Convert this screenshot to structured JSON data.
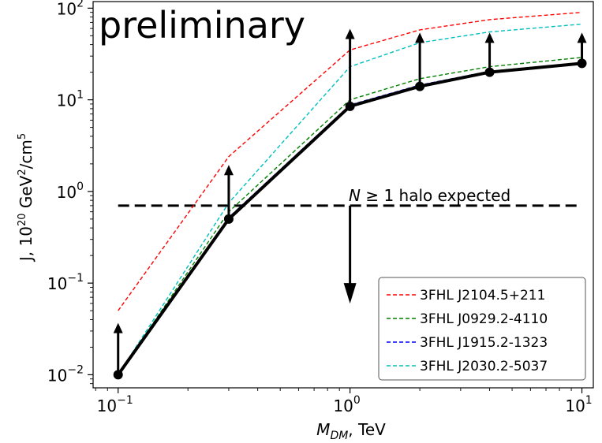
{
  "chart_data": {
    "type": "line",
    "title": "",
    "annotation_top": "preliminary",
    "xlabel_main": "M",
    "xlabel_sub": "DM",
    "xlabel_unit": ", TeV",
    "ylabel_prefix": "J, 10",
    "ylabel_exp1": "20",
    "ylabel_mid": " GeV",
    "ylabel_exp2": "2",
    "ylabel_mid2": "/cm",
    "ylabel_exp3": "5",
    "x_scale": "log",
    "y_scale": "log",
    "xlim": [
      0.078,
      11.2
    ],
    "ylim": [
      0.0072,
      118
    ],
    "x_ticks": [
      {
        "value": 0.1,
        "base": "10",
        "exp": "−1"
      },
      {
        "value": 1,
        "base": "10",
        "exp": "0"
      },
      {
        "value": 10,
        "base": "10",
        "exp": "1"
      }
    ],
    "y_ticks": [
      {
        "value": 0.01,
        "base": "10",
        "exp": "−2"
      },
      {
        "value": 0.1,
        "base": "10",
        "exp": "−1"
      },
      {
        "value": 1,
        "base": "10",
        "exp": "0"
      },
      {
        "value": 10,
        "base": "10",
        "exp": "1"
      },
      {
        "value": 100,
        "base": "10",
        "exp": "2"
      }
    ],
    "x": [
      0.1,
      0.3,
      1,
      2,
      4,
      10
    ],
    "series": [
      {
        "name": "3FHL J2104.5+211",
        "color": "#ff0000",
        "style": "dashed",
        "values": [
          0.05,
          2.4,
          35,
          58,
          75,
          90
        ]
      },
      {
        "name": "3FHL J0929.2-4110",
        "color": "#008000",
        "style": "dashed",
        "values": [
          0.01,
          0.6,
          10,
          17,
          23,
          29
        ]
      },
      {
        "name": "3FHL J1915.2-1323",
        "color": "#0000ff",
        "style": "dashed",
        "values": [
          0.01,
          0.52,
          8.8,
          14.5,
          20.5,
          25.5
        ]
      },
      {
        "name": "3FHL J2030.2-5037",
        "color": "#00bfbf",
        "style": "dashed",
        "values": [
          0.01,
          0.75,
          23,
          42,
          55,
          67
        ]
      }
    ],
    "envelope": {
      "color": "#000000",
      "values": [
        0.01,
        0.5,
        8.5,
        14,
        20,
        25
      ],
      "arrow_tops": [
        0.034,
        1.8,
        55,
        50,
        50,
        50
      ]
    },
    "threshold": {
      "value": 0.7,
      "label_italic": "N",
      "label_rest": " ≥ 1 halo expected",
      "arrow_x": 1,
      "arrow_bottom": 0.07
    },
    "legend": {
      "position": "lower-right"
    },
    "grid": false
  }
}
